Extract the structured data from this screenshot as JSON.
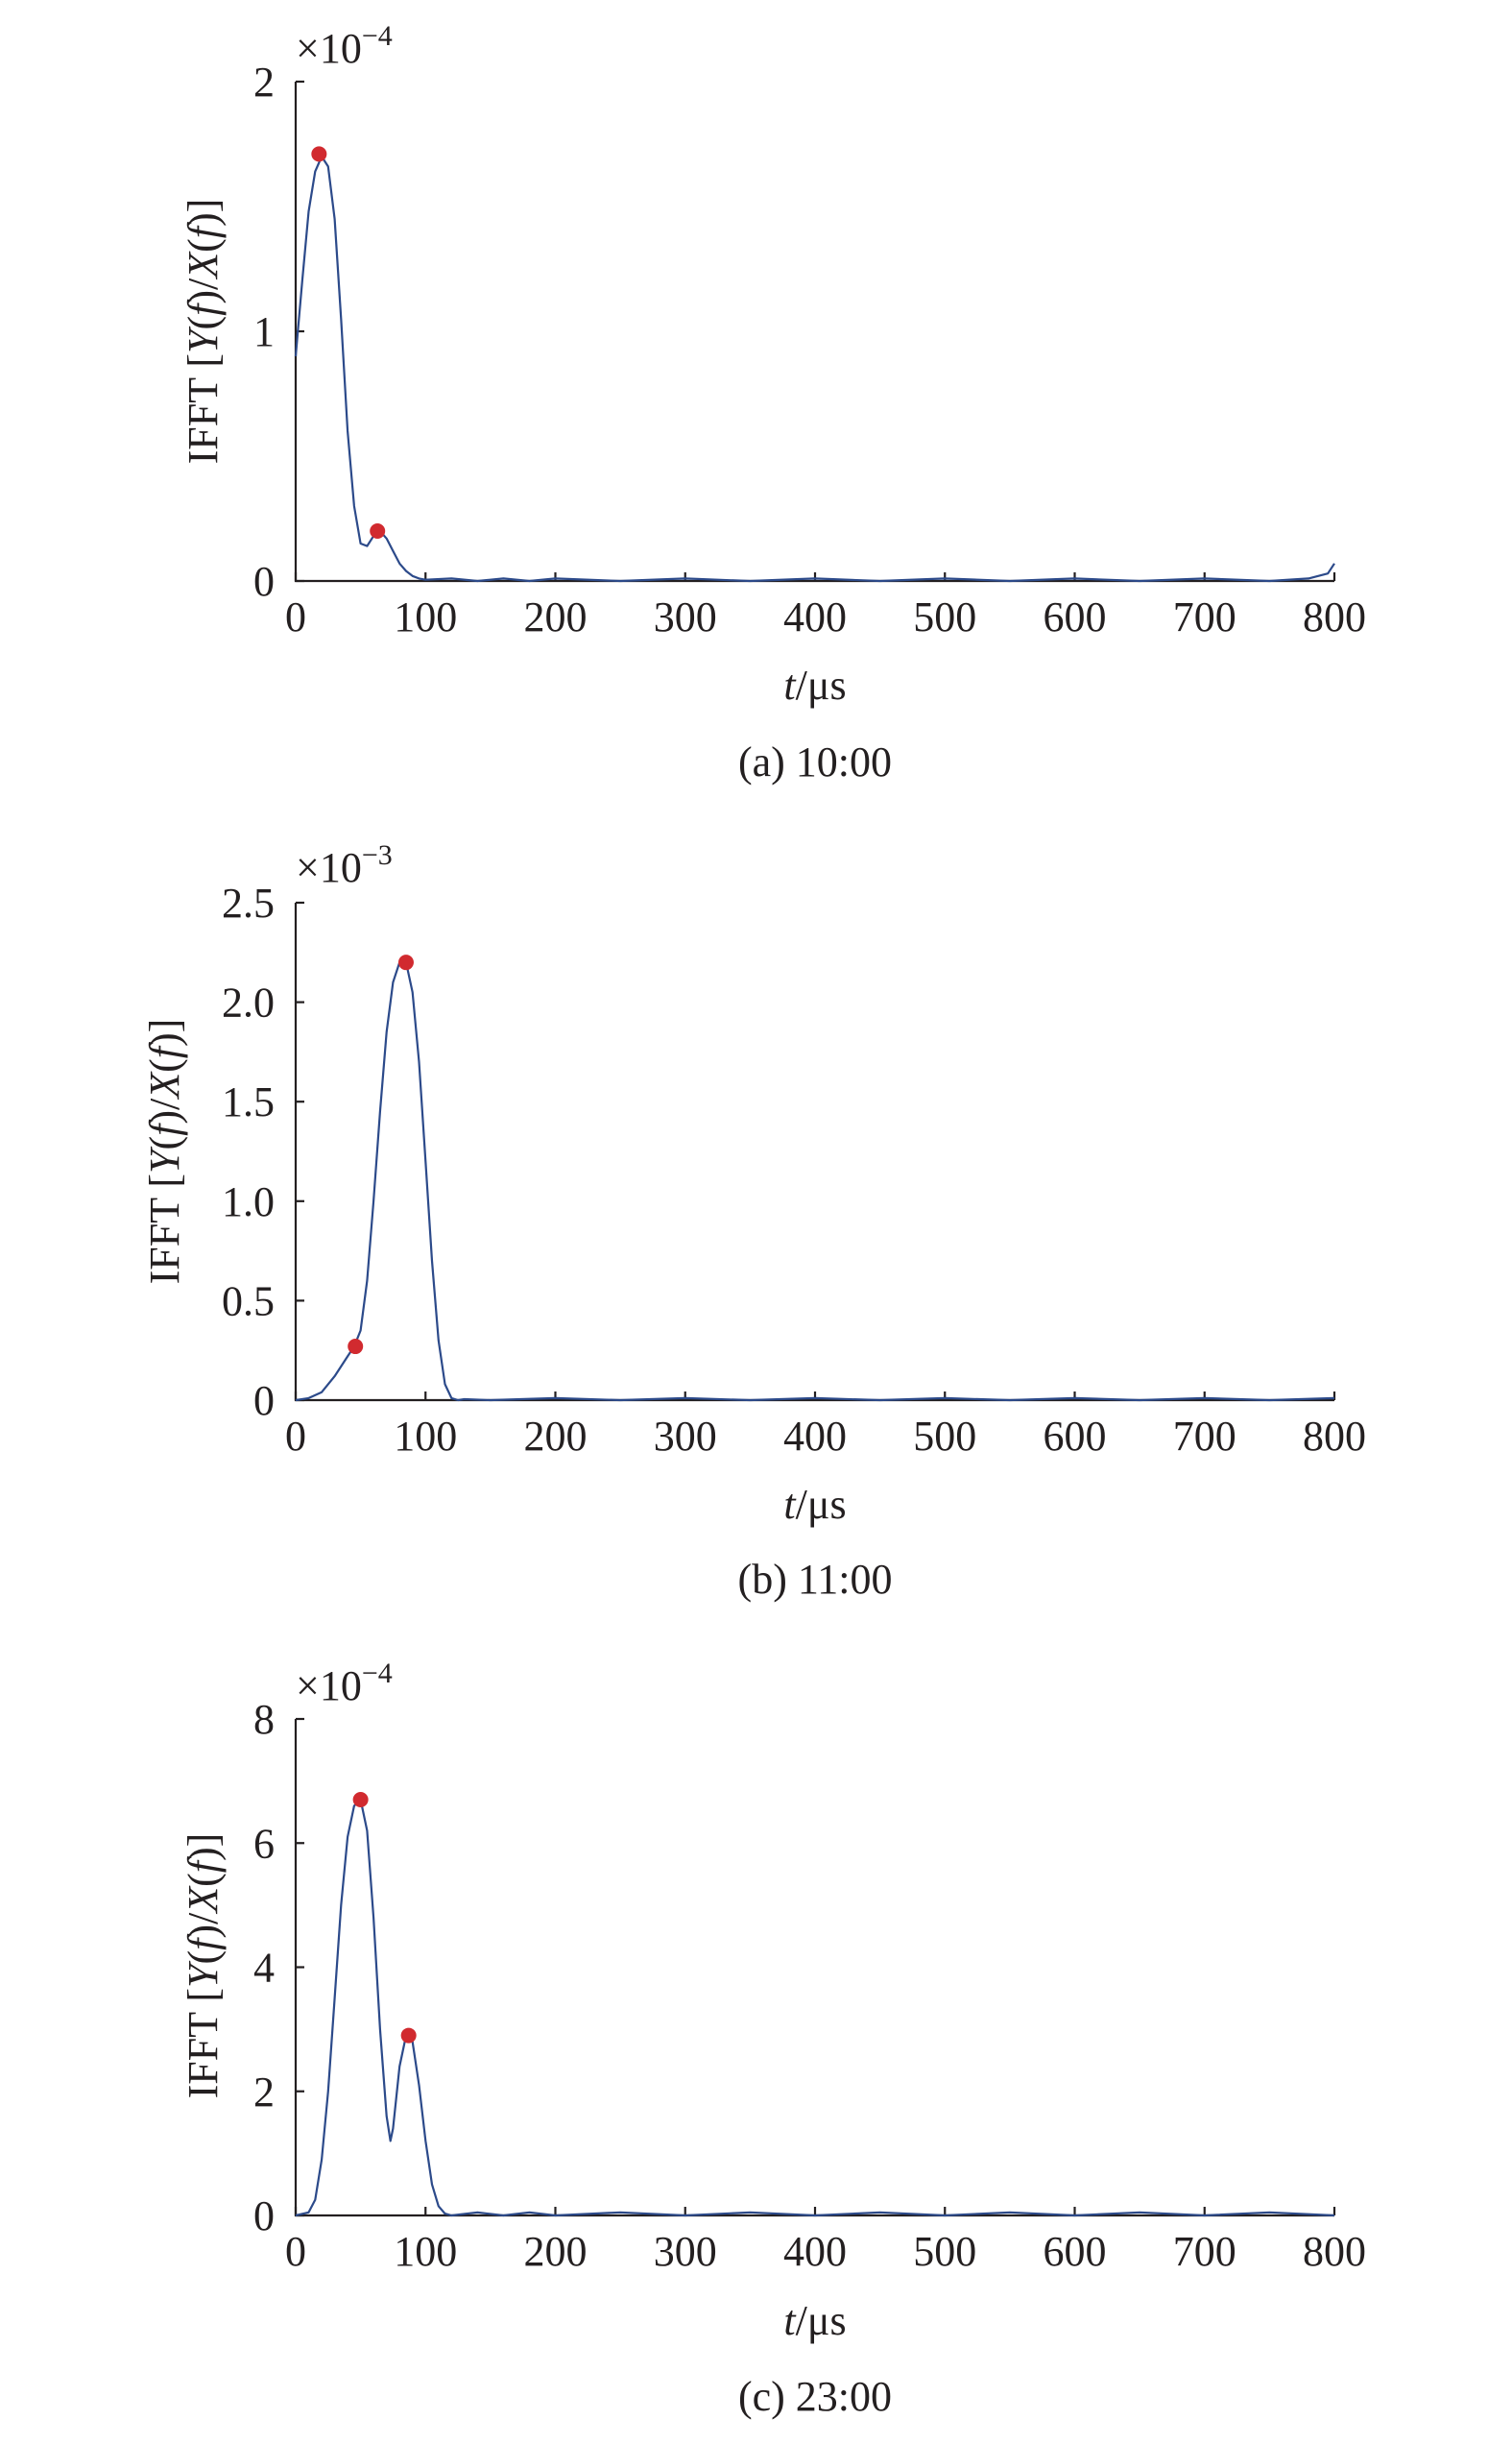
{
  "chart_data": [
    {
      "type": "line",
      "caption": "(a) 10:00",
      "xlabel_var": "t",
      "xlabel_unit": "/μs",
      "ylabel_prefix": "IFFT [",
      "ylabel_Y": "Y",
      "ylabel_f1": "f",
      "ylabel_mid": ")/",
      "ylabel_X": "X",
      "ylabel_f2": "f",
      "ylabel_suffix": ")]",
      "multiplier_base": "×10",
      "multiplier_exp": "−4",
      "xlim": [
        0,
        800
      ],
      "ylim": [
        0,
        2
      ],
      "xticks": [
        0,
        100,
        200,
        300,
        400,
        500,
        600,
        700,
        800
      ],
      "yticks": [
        0,
        1,
        2
      ],
      "ytick_labels": [
        "0",
        "1",
        "2"
      ],
      "series": [
        {
          "x": [
            0,
            5,
            10,
            15,
            20,
            25,
            30,
            35,
            40,
            45,
            50,
            55,
            60,
            65,
            70,
            75,
            80,
            85,
            90,
            95,
            100,
            120,
            140,
            160,
            180,
            200,
            250,
            300,
            350,
            400,
            450,
            500,
            550,
            600,
            650,
            700,
            750,
            780,
            795,
            800
          ],
          "y": [
            0.9,
            1.2,
            1.48,
            1.64,
            1.7,
            1.66,
            1.45,
            1.05,
            0.6,
            0.3,
            0.15,
            0.14,
            0.18,
            0.2,
            0.17,
            0.12,
            0.07,
            0.04,
            0.02,
            0.01,
            0.005,
            0.01,
            0.0,
            0.01,
            0.0,
            0.01,
            0.0,
            0.01,
            0.0,
            0.01,
            0.0,
            0.01,
            0.0,
            0.01,
            0.0,
            0.01,
            0.0,
            0.01,
            0.03,
            0.07
          ]
        }
      ],
      "peaks": [
        {
          "x": 18,
          "y": 1.71
        },
        {
          "x": 63,
          "y": 0.2
        }
      ]
    },
    {
      "type": "line",
      "caption": "(b) 11:00",
      "xlabel_var": "t",
      "xlabel_unit": "/μs",
      "ylabel_prefix": "IFFT [",
      "ylabel_Y": "Y",
      "ylabel_f1": "f",
      "ylabel_mid": ")/",
      "ylabel_X": "X",
      "ylabel_f2": "f",
      "ylabel_suffix": ")]",
      "multiplier_base": "×10",
      "multiplier_exp": "−3",
      "xlim": [
        0,
        800
      ],
      "ylim": [
        0,
        2.5
      ],
      "xticks": [
        0,
        100,
        200,
        300,
        400,
        500,
        600,
        700,
        800
      ],
      "yticks": [
        0,
        0.5,
        1.0,
        1.5,
        2.0,
        2.5
      ],
      "ytick_labels": [
        "0",
        "0.5",
        "1.0",
        "1.5",
        "2.0",
        "2.5"
      ],
      "series": [
        {
          "x": [
            0,
            10,
            20,
            30,
            40,
            45,
            50,
            55,
            60,
            65,
            70,
            75,
            80,
            85,
            90,
            95,
            100,
            105,
            110,
            115,
            120,
            125,
            130,
            150,
            200,
            250,
            300,
            350,
            400,
            450,
            500,
            550,
            600,
            650,
            700,
            750,
            800
          ],
          "y": [
            0.0,
            0.01,
            0.04,
            0.12,
            0.22,
            0.27,
            0.35,
            0.6,
            1.0,
            1.45,
            1.85,
            2.1,
            2.2,
            2.2,
            2.05,
            1.7,
            1.2,
            0.7,
            0.3,
            0.08,
            0.01,
            0.0,
            0.005,
            0.0,
            0.01,
            0.0,
            0.01,
            0.0,
            0.01,
            0.0,
            0.01,
            0.0,
            0.01,
            0.0,
            0.01,
            0.0,
            0.01
          ]
        }
      ],
      "peaks": [
        {
          "x": 46,
          "y": 0.27
        },
        {
          "x": 85,
          "y": 2.2
        }
      ]
    },
    {
      "type": "line",
      "caption": "(c) 23:00",
      "xlabel_var": "t",
      "xlabel_unit": "/μs",
      "ylabel_prefix": "IFFT [",
      "ylabel_Y": "Y",
      "ylabel_f1": "f",
      "ylabel_mid": ")/",
      "ylabel_X": "X",
      "ylabel_f2": "f",
      "ylabel_suffix": ")]",
      "multiplier_base": "×10",
      "multiplier_exp": "−4",
      "xlim": [
        0,
        800
      ],
      "ylim": [
        0,
        8
      ],
      "xticks": [
        0,
        100,
        200,
        300,
        400,
        500,
        600,
        700,
        800
      ],
      "yticks": [
        0,
        2,
        4,
        6,
        8
      ],
      "ytick_labels": [
        "0",
        "2",
        "4",
        "6",
        "8"
      ],
      "series": [
        {
          "x": [
            0,
            10,
            15,
            20,
            25,
            30,
            35,
            40,
            45,
            50,
            55,
            60,
            65,
            70,
            73,
            75,
            80,
            85,
            88,
            90,
            95,
            100,
            105,
            110,
            115,
            120,
            140,
            160,
            180,
            200,
            250,
            300,
            350,
            400,
            450,
            500,
            550,
            600,
            650,
            700,
            750,
            800
          ],
          "y": [
            0.0,
            0.05,
            0.25,
            0.9,
            2.0,
            3.5,
            5.0,
            6.1,
            6.6,
            6.7,
            6.2,
            4.8,
            3.0,
            1.6,
            1.2,
            1.4,
            2.4,
            2.9,
            2.9,
            2.8,
            2.1,
            1.2,
            0.5,
            0.15,
            0.03,
            0.0,
            0.05,
            0.0,
            0.05,
            0.0,
            0.05,
            0.0,
            0.05,
            0.0,
            0.05,
            0.0,
            0.05,
            0.0,
            0.05,
            0.0,
            0.05,
            0.0
          ]
        }
      ],
      "peaks": [
        {
          "x": 50,
          "y": 6.7
        },
        {
          "x": 87,
          "y": 2.9
        }
      ]
    }
  ]
}
